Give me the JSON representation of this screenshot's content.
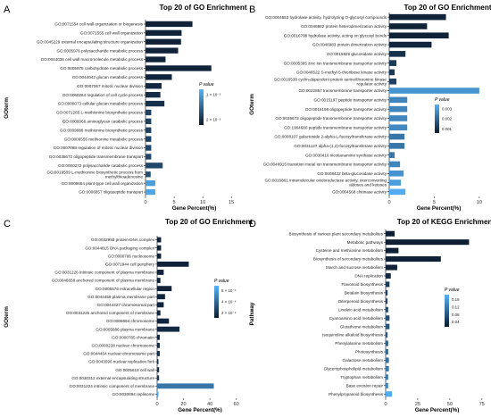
{
  "figure": {
    "panels": [
      "A",
      "B",
      "C",
      "D"
    ]
  },
  "chart_data": [
    {
      "panel": "A",
      "type": "bar",
      "title": "Top 20 of GO Enrichment",
      "xlabel": "Gene Percent(%)",
      "ylabel": "GOterm",
      "xlim": [
        0,
        17
      ],
      "xticks": [
        0,
        5,
        10,
        15
      ],
      "legend": {
        "title": "P value",
        "labels": [
          "1 × 10⁻⁵",
          "2 × 10⁻⁵"
        ],
        "placement": "right"
      },
      "color_scale": {
        "low": "#0b1a2e",
        "high": "#56b4f9"
      },
      "categories": [
        "GO:0071554 cell wall organization or biogenesis",
        "GO:0071555 cell wall organization",
        "GO:0045229 external encapsulating structure organization",
        "GO:0005976 polysaccharide metabolic process",
        "GO:0044036 cell wall macromolecule metabolic process",
        "GO:0005975 carbohydrate metabolic process",
        "GO:0044042 glucan metabolic process",
        "GO:0007067 mitotic nuclear division",
        "GO:0060264 regulation of cell cycle process",
        "GO:0006073 cellular glucan metabolic process",
        "GO:0071265 L-methionine biosynthetic process",
        "GO:0009066 aminoglycan catabolic process",
        "GO:0009086 methionine biosynthetic process",
        "GO:0006555 methionine metabolic process",
        "GO:0007088 regulation of mitotic nuclear division",
        "GO:0035672 oligopeptide transmembrane transport",
        "GO:0000272 polysaccharide catabolic process",
        "GO:0019509 L-methionine biosynthetic process from methylthioadenosine",
        "GO:0009664 plant-type cell wall organization",
        "GO:0006857 oligopeptide transport"
      ],
      "values": [
        8.2,
        6.3,
        6.2,
        5.7,
        3.5,
        11.5,
        4.6,
        2.8,
        2.6,
        3.3,
        1.0,
        1.0,
        1.0,
        1.0,
        1.0,
        1.0,
        3.0,
        0.9,
        1.7,
        1.7
      ],
      "pvalue_level": [
        0.05,
        0.05,
        0.05,
        0.06,
        0.06,
        0.05,
        0.08,
        0.1,
        0.12,
        0.15,
        0.25,
        0.25,
        0.25,
        0.25,
        0.28,
        0.28,
        0.3,
        0.35,
        0.85,
        0.9
      ]
    },
    {
      "panel": "B",
      "type": "bar",
      "title": "Top 20 of GO Enrichment",
      "xlabel": "Gene Percent(%)",
      "ylabel": "GOterm",
      "xlim": [
        0,
        11
      ],
      "xticks": [
        0,
        5,
        10
      ],
      "legend": {
        "title": "P value",
        "labels": [
          "0.003",
          "0.002",
          "0.001"
        ],
        "placement": "right"
      },
      "color_scale": {
        "low": "#0b1a2e",
        "high": "#56b4f9"
      },
      "categories": [
        "GO:0004553 hydrolase activity, hydrolyzing O-glycosyl compounds",
        "GO:0046982 protein heterodimerization activity",
        "GO:0016798 hydrolase activity, acting on glycosyl bonds",
        "GO:0046983 protein dimerization activity",
        "GO:0015926 glucosidase activity",
        "GO:0005385 zinc ion transmembrane transporter activity",
        "GO:0046522 S-methyl-5-thioribose kinase activity",
        "GO:0016538 cyclin-dependent protein serine/threonine kinase regulator activity",
        "GO:0022857 transmembrane transporter activity",
        "GO:0015197 peptide transporter activity",
        "GO:0015198 oligopeptide transporter activity",
        "GO:0035673 oligopeptide transmembrane transporter activity",
        "GO:1904680 peptide transmembrane transporter activity",
        "GO:0008107 galactoside 2-alpha-L-fucosyltransferase activity",
        "GO:0031127 alpha-(1,2)-fucosyltransferase activity",
        "GO:0030410 nicotianamine synthase activity",
        "GO:0046915 transition metal ion transmembrane transporter activity",
        "GO:0008422 beta-glucosidase activity",
        "GO:0016861 intramolecular oxidoreductase activity, interconverting aldoses and ketoses",
        "GO:0004568 chitinase activity"
      ],
      "values": [
        6.3,
        4.2,
        6.6,
        4.7,
        1.8,
        0.8,
        0.6,
        0.8,
        10.0,
        2.0,
        2.0,
        2.0,
        2.0,
        1.7,
        1.7,
        0.6,
        1.2,
        1.6,
        1.3,
        1.8
      ],
      "pvalue_level": [
        0.05,
        0.05,
        0.05,
        0.08,
        0.15,
        0.2,
        0.2,
        0.25,
        0.8,
        0.7,
        0.7,
        0.7,
        0.72,
        0.6,
        0.6,
        0.6,
        0.7,
        0.8,
        0.85,
        0.95
      ]
    },
    {
      "panel": "C",
      "type": "bar",
      "title": "Top 20 of GO Enrichment",
      "xlabel": "Gene Percent(%)",
      "ylabel": "GOterm",
      "xlim": [
        0,
        65
      ],
      "xticks": [
        0,
        20,
        40,
        60
      ],
      "legend": {
        "title": "P value",
        "labels": [
          "6 × 10⁻⁴",
          "4 × 10⁻⁴",
          "2 × 10⁻⁴"
        ],
        "placement": "right"
      },
      "color_scale": {
        "low": "#0b1a2e",
        "high": "#56b4f9"
      },
      "categories": [
        "GO:0032993 protein-DNA complex",
        "GO:0044815 DNA packaging complex",
        "GO:0000786 nucleosome",
        "GO:0071944 cell periphery",
        "GO:0031226 intrinsic component of plasma membrane",
        "GO:0046658 anchored component of plasma membrane",
        "GO:0005576 extracellular region",
        "GO:0044459 plasma membrane part",
        "GO:0044427 chromosomal part",
        "GO:0031225 anchored component of membrane",
        "GO:0005694 chromosome",
        "GO:0005886 plasma membrane",
        "GO:0000785 chromatin",
        "GO:0000228 nuclear chromosome",
        "GO:0044454 nuclear chromosome part",
        "GO:0043596 nuclear replication fork",
        "GO:0005618 cell wall",
        "GO:0030312 external encapsulating structure",
        "GO:0031224 intrinsic component of membrane",
        "GO:0030894 replisome"
      ],
      "values": [
        3.0,
        3.0,
        3.0,
        24.0,
        5.0,
        2.5,
        11.0,
        6.0,
        5.0,
        2.5,
        9.0,
        17.0,
        2.0,
        2.0,
        2.0,
        1.0,
        1.5,
        1.5,
        43.0,
        1.0
      ],
      "pvalue_level": [
        0.05,
        0.05,
        0.05,
        0.05,
        0.06,
        0.06,
        0.06,
        0.07,
        0.07,
        0.08,
        0.08,
        0.1,
        0.1,
        0.1,
        0.12,
        0.15,
        0.15,
        0.2,
        0.6,
        0.9
      ]
    },
    {
      "panel": "D",
      "type": "bar",
      "title": "Top 20 of KEGG Enrichment",
      "xlabel": "Gene Percent(%)",
      "ylabel": "Pathway",
      "xlim": [
        0,
        80
      ],
      "xticks": [
        0,
        25,
        50,
        75
      ],
      "legend": {
        "title": "P value",
        "labels": [
          "0.16",
          "0.12",
          "0.08",
          "0.04"
        ],
        "placement": "right"
      },
      "color_scale": {
        "low": "#0b1a2e",
        "high": "#56b4f9"
      },
      "categories": [
        "Biosynthesis of various plant secondary metabolites",
        "Metabolic pathways",
        "Cysteine and methionine metabolism",
        "Biosynthesis of secondary metabolites",
        "Starch and sucrose metabolism",
        "DNA replication",
        "Flavonoid biosynthesis",
        "Betalain biosynthesis",
        "Diterpenoid biosynthesis",
        "Linoleic acid metabolism",
        "Cyanoamino acid metabolism",
        "Glutathione metabolism",
        "Isoquinoline alkaloid biosynthesis",
        "Phenylalanine metabolism",
        "Photosynthesis",
        "Galactose metabolism",
        "Glycerophospholipid metabolism",
        "Tryptophan metabolism",
        "Base excision repair",
        "Phenylpropanoid biosynthesis"
      ],
      "values": [
        7.0,
        65.0,
        10.0,
        43.0,
        9.0,
        4.0,
        3.0,
        1.5,
        1.5,
        2.0,
        3.0,
        3.0,
        1.5,
        2.0,
        2.0,
        2.5,
        2.5,
        2.0,
        2.0,
        5.0
      ],
      "pvalue_level": [
        0.02,
        0.02,
        0.03,
        0.04,
        0.05,
        0.1,
        0.2,
        0.25,
        0.28,
        0.3,
        0.35,
        0.38,
        0.4,
        0.45,
        0.5,
        0.55,
        0.6,
        0.62,
        0.7,
        0.95
      ]
    }
  ]
}
